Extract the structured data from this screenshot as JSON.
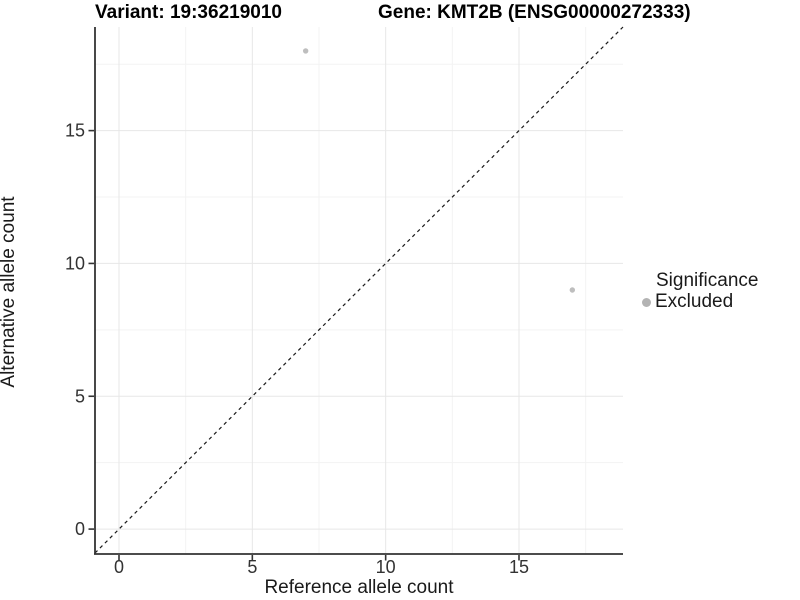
{
  "chart_data": {
    "type": "scatter",
    "titles": {
      "variant": "Variant: 19:36219010",
      "gene": "Gene: KMT2B (ENSG00000272333)"
    },
    "xlabel": "Reference allele count",
    "ylabel": "Alternative allele count",
    "xlim": [
      -0.9,
      18.9
    ],
    "ylim": [
      -0.9,
      18.9
    ],
    "xticks": [
      0,
      5,
      10,
      15
    ],
    "yticks": [
      0,
      5,
      10,
      15
    ],
    "minor_gridlines_x": [
      2.5,
      7.5,
      12.5,
      17.5
    ],
    "minor_gridlines_y": [
      2.5,
      7.5,
      12.5,
      17.5
    ],
    "grid": true,
    "identity_line": {
      "style": "dashed",
      "from": [
        -0.9,
        -0.9
      ],
      "to": [
        18.9,
        18.9
      ],
      "color": "#1a1a1a"
    },
    "series": [
      {
        "name": "Excluded",
        "color": "#bebebe",
        "points": [
          {
            "x": 7,
            "y": 18
          },
          {
            "x": 17,
            "y": 9
          }
        ]
      }
    ],
    "legend": {
      "title": "Significance",
      "position": "right",
      "items": [
        {
          "label": "Excluded",
          "color": "#b3b3b3"
        }
      ]
    },
    "colors": {
      "background": "#ffffff",
      "major_grid": "#e7e7e7",
      "minor_grid": "#f3f3f3",
      "axis_line": "#333333",
      "tick_label": "#333333",
      "point": "#bebebe"
    }
  }
}
